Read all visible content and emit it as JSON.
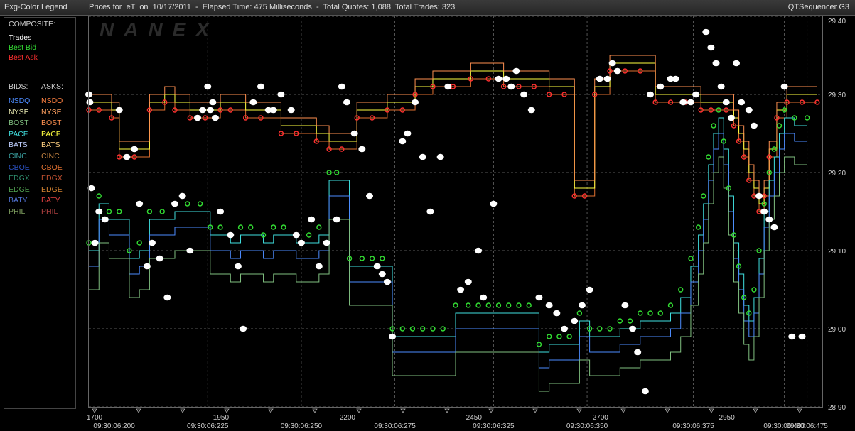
{
  "window": {
    "legend_title": "Exg-Color Legend",
    "title": "Prices for  eT  on  10/17/2011  -  Elapsed Time: 475 Milliseconds  -  Total Quotes: 1,088  Total Trades: 323",
    "brand": "QTSequencer G3",
    "watermark": "NANEX"
  },
  "legend": {
    "composite_label": "COMPOSITE:",
    "composite": [
      {
        "label": "Trades",
        "color": "#ffffff"
      },
      {
        "label": "Best Bid",
        "color": "#33dd33"
      },
      {
        "label": "Best Ask",
        "color": "#ff3030"
      }
    ],
    "bids_label": "BIDS:",
    "asks_label": "ASKS:",
    "bids": [
      {
        "label": "NSDQ",
        "color": "#4d8cff"
      },
      {
        "label": "NYSE",
        "color": "#e8e8b0"
      },
      {
        "label": "BOST",
        "color": "#80c080"
      },
      {
        "label": "PACF",
        "color": "#40e0e0"
      },
      {
        "label": "BATS",
        "color": "#c0d0ff"
      },
      {
        "label": "CINC",
        "color": "#3aa0a0"
      },
      {
        "label": "CBOE",
        "color": "#2a50c0"
      },
      {
        "label": "EDGX",
        "color": "#309070"
      },
      {
        "label": "EDGE",
        "color": "#50a050"
      },
      {
        "label": "BATY",
        "color": "#5070d0"
      },
      {
        "label": "PHIL",
        "color": "#80a060"
      }
    ],
    "asks": [
      {
        "label": "NSDQ",
        "color": "#ff8040"
      },
      {
        "label": "NYSE",
        "color": "#ffa060"
      },
      {
        "label": "BOST",
        "color": "#ff9050"
      },
      {
        "label": "PACF",
        "color": "#ffff40"
      },
      {
        "label": "BATS",
        "color": "#ffd080"
      },
      {
        "label": "CINC",
        "color": "#c08040"
      },
      {
        "label": "CBOE",
        "color": "#e07030"
      },
      {
        "label": "EDGX",
        "color": "#c05030"
      },
      {
        "label": "EDGE",
        "color": "#d08030"
      },
      {
        "label": "BATY",
        "color": "#e04040"
      },
      {
        "label": "PHIL",
        "color": "#b04040"
      }
    ]
  },
  "chart_data": {
    "type": "scatter",
    "ylim": [
      28.9,
      29.4
    ],
    "y_ticks": [
      29.4,
      29.3,
      29.2,
      29.1,
      29.0,
      28.9
    ],
    "y_tick_labels": [
      "29.40",
      "29.30",
      "29.20",
      "29.10",
      "29.00",
      "28.90"
    ],
    "xlim": [
      1700,
      3150
    ],
    "x_seq_ticks": [
      1700,
      1950,
      2200,
      2450,
      2700,
      2950
    ],
    "x_seq_labels": [
      "1700",
      "1950",
      "2200",
      "2450",
      "2700",
      "2950"
    ],
    "x_time_ticks": [
      1750,
      1935,
      2120,
      2305,
      2500,
      2685,
      2895,
      3075,
      3120
    ],
    "x_time_labels": [
      "09:30:06:200",
      "09:30:06:225",
      "09:30:06:250",
      "09:30:06:275",
      "09:30:06:325",
      "09:30:06:350",
      "09:30:06:375",
      "09:30:06:400",
      "09:30:06:475"
    ],
    "grid": true,
    "series": [
      {
        "name": "Best Ask",
        "color": "#ff3030",
        "marker": "circle-small",
        "points": [
          [
            1700,
            29.28
          ],
          [
            1720,
            29.28
          ],
          [
            1745,
            29.27
          ],
          [
            1760,
            29.22
          ],
          [
            1790,
            29.22
          ],
          [
            1820,
            29.28
          ],
          [
            1850,
            29.29
          ],
          [
            1870,
            29.28
          ],
          [
            1900,
            29.27
          ],
          [
            1930,
            29.27
          ],
          [
            1960,
            29.28
          ],
          [
            1980,
            29.28
          ],
          [
            2010,
            29.27
          ],
          [
            2040,
            29.27
          ],
          [
            2080,
            29.25
          ],
          [
            2110,
            29.25
          ],
          [
            2150,
            29.24
          ],
          [
            2175,
            29.23
          ],
          [
            2200,
            29.23
          ],
          [
            2230,
            29.27
          ],
          [
            2260,
            29.27
          ],
          [
            2290,
            29.28
          ],
          [
            2320,
            29.28
          ],
          [
            2345,
            29.3
          ],
          [
            2380,
            29.31
          ],
          [
            2420,
            29.31
          ],
          [
            2455,
            29.32
          ],
          [
            2490,
            29.32
          ],
          [
            2520,
            29.31
          ],
          [
            2550,
            29.31
          ],
          [
            2580,
            29.31
          ],
          [
            2610,
            29.3
          ],
          [
            2640,
            29.3
          ],
          [
            2660,
            29.17
          ],
          [
            2680,
            29.17
          ],
          [
            2700,
            29.3
          ],
          [
            2730,
            29.33
          ],
          [
            2760,
            29.33
          ],
          [
            2790,
            29.33
          ],
          [
            2820,
            29.29
          ],
          [
            2850,
            29.29
          ],
          [
            2880,
            29.29
          ],
          [
            2910,
            29.28
          ],
          [
            2930,
            29.28
          ],
          [
            2960,
            29.28
          ],
          [
            2975,
            29.26
          ],
          [
            2985,
            29.24
          ],
          [
            2995,
            29.22
          ],
          [
            3005,
            29.19
          ],
          [
            3015,
            29.17
          ],
          [
            3025,
            29.15
          ],
          [
            3035,
            29.17
          ],
          [
            3045,
            29.22
          ],
          [
            3060,
            29.27
          ],
          [
            3080,
            29.29
          ],
          [
            3110,
            29.29
          ],
          [
            3140,
            29.29
          ]
        ]
      },
      {
        "name": "Best Bid",
        "color": "#33dd33",
        "marker": "circle-small",
        "points": [
          [
            1700,
            29.11
          ],
          [
            1720,
            29.17
          ],
          [
            1740,
            29.15
          ],
          [
            1760,
            29.15
          ],
          [
            1780,
            29.1
          ],
          [
            1800,
            29.11
          ],
          [
            1820,
            29.15
          ],
          [
            1845,
            29.15
          ],
          [
            1870,
            29.16
          ],
          [
            1895,
            29.16
          ],
          [
            1920,
            29.16
          ],
          [
            1940,
            29.13
          ],
          [
            1960,
            29.13
          ],
          [
            1980,
            29.12
          ],
          [
            2000,
            29.13
          ],
          [
            2020,
            29.13
          ],
          [
            2045,
            29.12
          ],
          [
            2065,
            29.13
          ],
          [
            2085,
            29.13
          ],
          [
            2110,
            29.12
          ],
          [
            2135,
            29.12
          ],
          [
            2155,
            29.13
          ],
          [
            2175,
            29.2
          ],
          [
            2190,
            29.2
          ],
          [
            2215,
            29.09
          ],
          [
            2240,
            29.09
          ],
          [
            2260,
            29.09
          ],
          [
            2280,
            29.09
          ],
          [
            2300,
            29.0
          ],
          [
            2320,
            29.0
          ],
          [
            2340,
            29.0
          ],
          [
            2360,
            29.0
          ],
          [
            2380,
            29.0
          ],
          [
            2400,
            29.0
          ],
          [
            2425,
            29.03
          ],
          [
            2450,
            29.03
          ],
          [
            2470,
            29.03
          ],
          [
            2490,
            29.03
          ],
          [
            2510,
            29.03
          ],
          [
            2530,
            29.03
          ],
          [
            2550,
            29.03
          ],
          [
            2570,
            29.03
          ],
          [
            2590,
            28.98
          ],
          [
            2610,
            28.99
          ],
          [
            2630,
            28.99
          ],
          [
            2650,
            28.99
          ],
          [
            2670,
            29.02
          ],
          [
            2690,
            29.0
          ],
          [
            2710,
            29.0
          ],
          [
            2730,
            29.0
          ],
          [
            2750,
            29.01
          ],
          [
            2770,
            29.01
          ],
          [
            2790,
            29.02
          ],
          [
            2810,
            29.02
          ],
          [
            2830,
            29.02
          ],
          [
            2850,
            29.03
          ],
          [
            2870,
            29.05
          ],
          [
            2890,
            29.09
          ],
          [
            2905,
            29.13
          ],
          [
            2915,
            29.17
          ],
          [
            2925,
            29.22
          ],
          [
            2935,
            29.26
          ],
          [
            2945,
            29.28
          ],
          [
            2955,
            29.24
          ],
          [
            2965,
            29.18
          ],
          [
            2975,
            29.12
          ],
          [
            2985,
            29.08
          ],
          [
            2995,
            29.04
          ],
          [
            3005,
            29.02
          ],
          [
            3015,
            29.05
          ],
          [
            3025,
            29.1
          ],
          [
            3035,
            29.16
          ],
          [
            3045,
            29.2
          ],
          [
            3055,
            29.23
          ],
          [
            3065,
            29.26
          ],
          [
            3075,
            29.28
          ],
          [
            3095,
            29.27
          ],
          [
            3120,
            29.27
          ]
        ]
      },
      {
        "name": "Trades",
        "color": "#ffffff",
        "marker": "circle-large",
        "points": [
          [
            1700,
            29.3
          ],
          [
            1702,
            29.29
          ],
          [
            1705,
            29.18
          ],
          [
            1712,
            29.11
          ],
          [
            1720,
            29.15
          ],
          [
            1732,
            29.14
          ],
          [
            1760,
            29.28
          ],
          [
            1775,
            29.22
          ],
          [
            1790,
            29.23
          ],
          [
            1800,
            29.16
          ],
          [
            1815,
            29.08
          ],
          [
            1825,
            29.11
          ],
          [
            1840,
            29.09
          ],
          [
            1855,
            29.04
          ],
          [
            1870,
            29.16
          ],
          [
            1885,
            29.17
          ],
          [
            1900,
            29.1
          ],
          [
            1915,
            29.27
          ],
          [
            1925,
            29.28
          ],
          [
            1935,
            29.31
          ],
          [
            1940,
            29.28
          ],
          [
            1945,
            29.29
          ],
          [
            1950,
            29.27
          ],
          [
            1960,
            29.15
          ],
          [
            1980,
            29.12
          ],
          [
            1995,
            29.08
          ],
          [
            2005,
            29.0
          ],
          [
            2025,
            29.29
          ],
          [
            2040,
            29.31
          ],
          [
            2055,
            29.28
          ],
          [
            2065,
            29.28
          ],
          [
            2080,
            29.3
          ],
          [
            2100,
            29.28
          ],
          [
            2110,
            29.12
          ],
          [
            2120,
            29.11
          ],
          [
            2140,
            29.14
          ],
          [
            2155,
            29.08
          ],
          [
            2170,
            29.11
          ],
          [
            2190,
            29.14
          ],
          [
            2200,
            29.31
          ],
          [
            2210,
            29.29
          ],
          [
            2225,
            29.25
          ],
          [
            2240,
            29.23
          ],
          [
            2255,
            29.17
          ],
          [
            2270,
            29.08
          ],
          [
            2280,
            29.07
          ],
          [
            2290,
            29.06
          ],
          [
            2300,
            28.99
          ],
          [
            2320,
            29.24
          ],
          [
            2330,
            29.25
          ],
          [
            2345,
            29.29
          ],
          [
            2360,
            29.22
          ],
          [
            2375,
            29.15
          ],
          [
            2395,
            29.22
          ],
          [
            2410,
            29.31
          ],
          [
            2435,
            29.05
          ],
          [
            2450,
            29.06
          ],
          [
            2470,
            29.1
          ],
          [
            2480,
            29.04
          ],
          [
            2500,
            29.16
          ],
          [
            2510,
            29.32
          ],
          [
            2525,
            29.32
          ],
          [
            2535,
            29.31
          ],
          [
            2545,
            29.33
          ],
          [
            2560,
            29.3
          ],
          [
            2575,
            29.28
          ],
          [
            2590,
            29.04
          ],
          [
            2610,
            29.03
          ],
          [
            2625,
            29.02
          ],
          [
            2640,
            29.0
          ],
          [
            2660,
            29.01
          ],
          [
            2675,
            29.03
          ],
          [
            2690,
            29.05
          ],
          [
            2710,
            29.32
          ],
          [
            2725,
            29.32
          ],
          [
            2735,
            29.34
          ],
          [
            2745,
            29.33
          ],
          [
            2760,
            29.03
          ],
          [
            2775,
            29.0
          ],
          [
            2785,
            28.97
          ],
          [
            2800,
            28.92
          ],
          [
            2810,
            29.3
          ],
          [
            2830,
            29.31
          ],
          [
            2850,
            29.32
          ],
          [
            2860,
            29.32
          ],
          [
            2875,
            29.29
          ],
          [
            2890,
            29.29
          ],
          [
            2900,
            29.3
          ],
          [
            2920,
            29.38
          ],
          [
            2930,
            29.36
          ],
          [
            2940,
            29.34
          ],
          [
            2950,
            29.31
          ],
          [
            2960,
            29.29
          ],
          [
            2970,
            29.27
          ],
          [
            2980,
            29.34
          ],
          [
            2990,
            29.29
          ],
          [
            3005,
            29.28
          ],
          [
            3015,
            29.26
          ],
          [
            3025,
            29.17
          ],
          [
            3035,
            29.15
          ],
          [
            3045,
            29.14
          ],
          [
            3055,
            29.13
          ],
          [
            3075,
            29.31
          ],
          [
            3090,
            28.99
          ],
          [
            3110,
            28.99
          ]
        ]
      }
    ]
  }
}
